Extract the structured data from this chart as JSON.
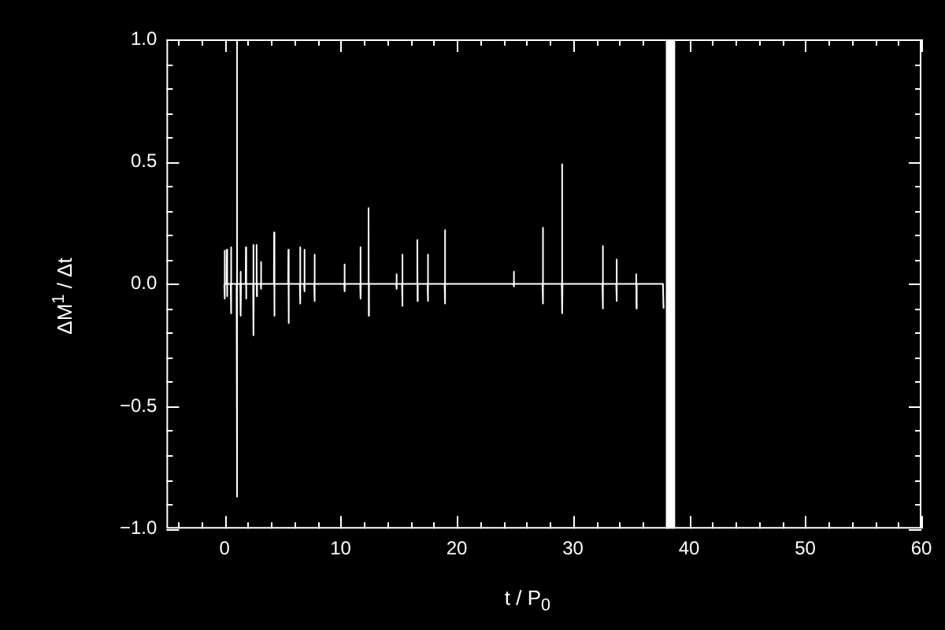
{
  "chart_data": {
    "type": "line",
    "xlabel": "t / P$_{0}$",
    "ylabel": "ΔM$^{1}$ / Δt",
    "xlim": [
      -5,
      60
    ],
    "ylim": [
      -1,
      1
    ],
    "xticks": [
      {
        "value": -4,
        "label": null
      },
      {
        "value": -2,
        "label": null
      },
      0,
      {
        "value": 2,
        "label": null
      },
      {
        "value": 4,
        "label": null
      },
      {
        "value": 6,
        "label": null
      },
      {
        "value": 8,
        "label": null
      },
      10,
      {
        "value": 12,
        "label": null
      },
      {
        "value": 14,
        "label": null
      },
      {
        "value": 16,
        "label": null
      },
      {
        "value": 18,
        "label": null
      },
      20,
      {
        "value": 22,
        "label": null
      },
      {
        "value": 24,
        "label": null
      },
      {
        "value": 26,
        "label": null
      },
      {
        "value": 28,
        "label": null
      },
      30,
      {
        "value": 32,
        "label": null
      },
      {
        "value": 34,
        "label": null
      },
      {
        "value": 36,
        "label": null
      },
      {
        "value": 38,
        "label": null
      },
      40,
      {
        "value": 42,
        "label": null
      },
      {
        "value": 44,
        "label": null
      },
      {
        "value": 46,
        "label": null
      },
      {
        "value": 48,
        "label": null
      },
      50,
      {
        "value": 52,
        "label": null
      },
      {
        "value": 54,
        "label": null
      },
      {
        "value": 56,
        "label": null
      },
      {
        "value": 58,
        "label": null
      },
      60
    ],
    "yticks": [
      {
        "value": -1,
        "label": "−1.0"
      },
      {
        "value": -0.9,
        "label": null
      },
      {
        "value": -0.8,
        "label": null
      },
      {
        "value": -0.7,
        "label": null
      },
      {
        "value": -0.6,
        "label": null
      },
      {
        "value": -0.5,
        "label": "−0.5"
      },
      {
        "value": -0.4,
        "label": null
      },
      {
        "value": -0.3,
        "label": null
      },
      {
        "value": -0.2,
        "label": null
      },
      {
        "value": -0.1,
        "label": null
      },
      {
        "value": 0,
        "label": "0.0"
      },
      {
        "value": 0.1,
        "label": null
      },
      {
        "value": 0.2,
        "label": null
      },
      {
        "value": 0.3,
        "label": null
      },
      {
        "value": 0.4,
        "label": null
      },
      {
        "value": 0.5,
        "label": "0.5"
      },
      {
        "value": 0.6,
        "label": null
      },
      {
        "value": 0.7,
        "label": null
      },
      {
        "value": 0.8,
        "label": null
      },
      {
        "value": 0.9,
        "label": null
      },
      {
        "value": 1,
        "label": "1.0"
      }
    ],
    "grid": false,
    "legend": false,
    "marker": "none",
    "line_style": "solid",
    "bands": [
      {
        "axis": "x",
        "from": 38.0,
        "to": 38.8,
        "color": "#ffffff"
      }
    ],
    "series": [
      {
        "color": "#ffffff",
        "x": [
          -0.02,
          0,
          0.02,
          0.04,
          0.18,
          0.2,
          0.22,
          0.24,
          0.53,
          0.55,
          0.57,
          0.59,
          1.04,
          1.06,
          1.08,
          1.1,
          1.36,
          1.38,
          1.4,
          1.42,
          1.82,
          1.84,
          1.86,
          1.88,
          2.46,
          2.48,
          2.5,
          2.52,
          2.74,
          2.76,
          2.78,
          2.8,
          3.11,
          3.13,
          3.15,
          3.17,
          4.25,
          4.27,
          4.29,
          4.31,
          5.48,
          5.5,
          5.52,
          5.54,
          6.48,
          6.5,
          6.52,
          6.54,
          6.85,
          6.87,
          6.89,
          6.91,
          7.72,
          7.74,
          7.76,
          7.78,
          10.31,
          10.33,
          10.35,
          10.37,
          11.68,
          11.7,
          11.72,
          11.74,
          12.38,
          12.4,
          12.42,
          12.44,
          14.78,
          14.8,
          14.82,
          14.84,
          15.28,
          15.3,
          15.32,
          15.34,
          16.58,
          16.6,
          16.62,
          16.64,
          17.48,
          17.5,
          17.52,
          17.54,
          18.95,
          18.97,
          18.99,
          19.01,
          24.88,
          24.9,
          24.92,
          24.94,
          27.38,
          27.4,
          27.42,
          27.44,
          29.04,
          29.06,
          29.08,
          29.1,
          32.54,
          32.56,
          32.58,
          32.6,
          33.73,
          33.75,
          33.77,
          33.79,
          35.43,
          35.45,
          35.47,
          35.49,
          37.75,
          37.8
        ],
        "values": [
          0,
          0.136,
          -0.06,
          0,
          0,
          0.14,
          -0.05,
          0,
          0,
          0.15,
          -0.12,
          0,
          0,
          1.0,
          -0.87,
          0,
          0,
          0.05,
          -0.13,
          0,
          0,
          0.15,
          -0.06,
          0,
          0,
          0.16,
          -0.21,
          0,
          0,
          0.16,
          -0.05,
          0,
          0,
          0.09,
          -0.02,
          0,
          0,
          0.21,
          -0.13,
          0,
          0,
          0.14,
          -0.16,
          0,
          0,
          0.15,
          -0.08,
          0,
          0,
          0.14,
          -0.03,
          0,
          0,
          0.12,
          -0.07,
          0,
          0,
          0.08,
          -0.03,
          0,
          0,
          0.15,
          -0.06,
          0,
          0,
          0.31,
          -0.13,
          0,
          0,
          0.04,
          -0.02,
          0,
          0,
          0.12,
          -0.09,
          0,
          0,
          0.18,
          -0.07,
          0,
          0,
          0.12,
          -0.07,
          0,
          0,
          0.22,
          -0.08,
          0,
          0,
          0.05,
          -0.01,
          0,
          0,
          0.23,
          -0.08,
          0,
          0,
          0.49,
          -0.12,
          0,
          0,
          0.155,
          -0.1,
          0,
          0,
          0.1,
          -0.07,
          0,
          0,
          0.04,
          -0.1,
          0,
          0,
          -0.1
        ]
      }
    ]
  }
}
